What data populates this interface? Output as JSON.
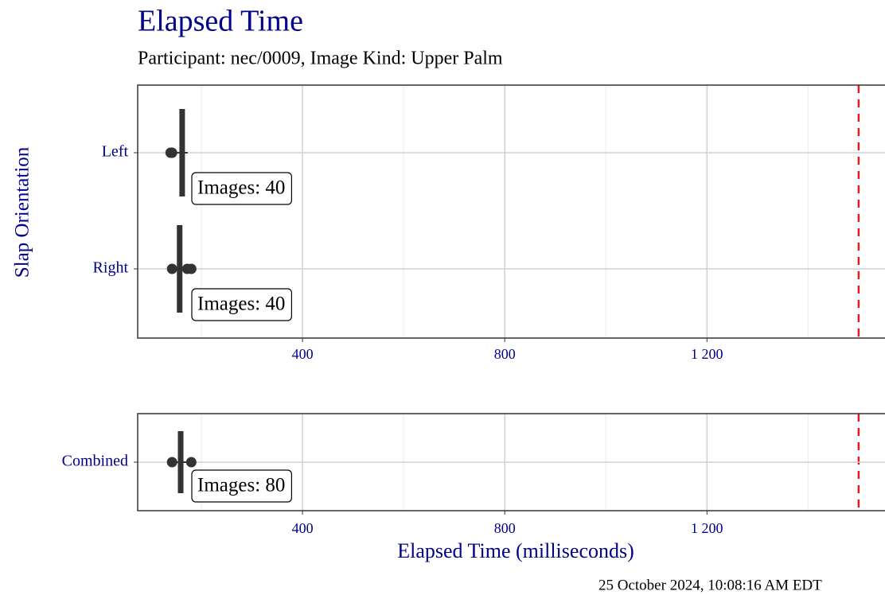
{
  "chart_data": {
    "type": "boxplot",
    "title": "Elapsed Time",
    "subtitle": "Participant: nec/0009, Image Kind: Upper Palm",
    "y_label": "Slap Orientation",
    "x_label": "Elapsed Time (milliseconds)",
    "timestamp": "25 October 2024, 10:08:16 AM EDT",
    "xlim": [
      74,
      1560
    ],
    "xticks": [
      400,
      800,
      {
        "value": 1200,
        "label": "1 200"
      }
    ],
    "minor_xticks": [
      200,
      600,
      1000,
      1400
    ],
    "reference_line": 1500,
    "reference_color": "#e31a1c",
    "color": "#333333",
    "grid": true,
    "panels": [
      {
        "groups": [
          {
            "name": "Left",
            "median": 162,
            "whisker": [
              132,
              173
            ],
            "outliers": [
              139,
              142
            ],
            "annotation": "Images: 40"
          },
          {
            "name": "Right",
            "median": 157,
            "whisker": [
              142,
              180
            ],
            "outliers": [
              142,
              172,
              180
            ],
            "annotation": "Images: 40"
          }
        ]
      },
      {
        "groups": [
          {
            "name": "Combined",
            "median": 159,
            "whisker": [
              142,
              180
            ],
            "outliers": [
              142,
              180
            ],
            "annotation": "Images: 80"
          }
        ]
      }
    ]
  }
}
